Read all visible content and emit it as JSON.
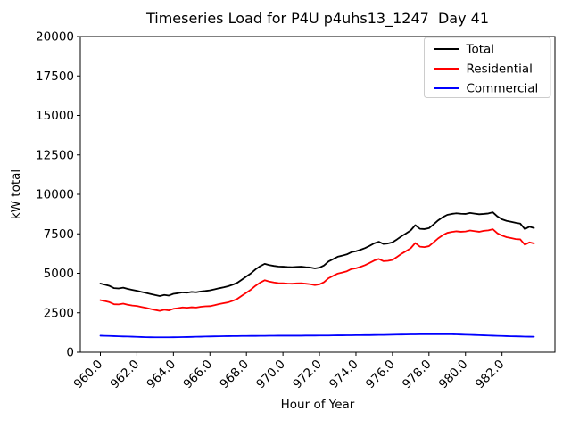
{
  "figure": {
    "title": "Timeseries Load for P4U p4uhs13_1247  Day 41",
    "xlabel": "Hour of Year",
    "ylabel": "kW total"
  },
  "colors": {
    "total": "#000000",
    "residential": "#ff0000",
    "commercial": "#0000ff",
    "axes": "#000000",
    "legend_border": "#cccccc",
    "background": "#ffffff"
  },
  "chart_data": {
    "type": "line",
    "title": "Timeseries Load for P4U p4uhs13_1247  Day 41",
    "xlabel": "Hour of Year",
    "ylabel": "kW total",
    "grid": false,
    "legend_position": "upper right",
    "xlim": [
      958.9,
      984.9
    ],
    "ylim": [
      0,
      20000
    ],
    "x_tick_values": [
      960.0,
      962.0,
      964.0,
      966.0,
      968.0,
      970.0,
      972.0,
      974.0,
      976.0,
      978.0,
      980.0,
      982.0
    ],
    "x_tick_labels": [
      "960.0",
      "962.0",
      "964.0",
      "966.0",
      "968.0",
      "970.0",
      "972.0",
      "974.0",
      "976.0",
      "978.0",
      "980.0",
      "982.0"
    ],
    "y_tick_values": [
      0,
      2500,
      5000,
      7500,
      10000,
      12500,
      15000,
      17500,
      20000
    ],
    "y_tick_labels": [
      "0",
      "2500",
      "5000",
      "7500",
      "10000",
      "12500",
      "15000",
      "17500",
      "20000"
    ],
    "x": [
      960.0,
      960.25,
      960.5,
      960.75,
      961.0,
      961.25,
      961.5,
      961.75,
      962.0,
      962.25,
      962.5,
      962.75,
      963.0,
      963.25,
      963.5,
      963.75,
      964.0,
      964.25,
      964.5,
      964.75,
      965.0,
      965.25,
      965.5,
      965.75,
      966.0,
      966.25,
      966.5,
      966.75,
      967.0,
      967.25,
      967.5,
      967.75,
      968.0,
      968.25,
      968.5,
      968.75,
      969.0,
      969.25,
      969.5,
      969.75,
      970.0,
      970.25,
      970.5,
      970.75,
      971.0,
      971.25,
      971.5,
      971.75,
      972.0,
      972.25,
      972.5,
      972.75,
      973.0,
      973.25,
      973.5,
      973.75,
      974.0,
      974.25,
      974.5,
      974.75,
      975.0,
      975.25,
      975.5,
      975.75,
      976.0,
      976.25,
      976.5,
      976.75,
      977.0,
      977.25,
      977.5,
      977.75,
      978.0,
      978.25,
      978.5,
      978.75,
      979.0,
      979.25,
      979.5,
      979.75,
      980.0,
      980.25,
      980.5,
      980.75,
      981.0,
      981.25,
      981.5,
      981.75,
      982.0,
      982.25,
      982.5,
      982.75,
      983.0,
      983.25,
      983.5,
      983.75
    ],
    "series": [
      {
        "name": "Total",
        "color": "#000000",
        "values": [
          4350,
          4280,
          4200,
          4060,
          4040,
          4090,
          4010,
          3950,
          3890,
          3820,
          3760,
          3690,
          3620,
          3560,
          3630,
          3590,
          3700,
          3740,
          3790,
          3770,
          3820,
          3800,
          3850,
          3880,
          3920,
          3980,
          4050,
          4110,
          4180,
          4280,
          4400,
          4600,
          4800,
          5000,
          5250,
          5450,
          5600,
          5520,
          5470,
          5430,
          5420,
          5400,
          5390,
          5410,
          5420,
          5390,
          5370,
          5310,
          5360,
          5500,
          5750,
          5900,
          6050,
          6120,
          6200,
          6340,
          6400,
          6490,
          6600,
          6740,
          6900,
          7000,
          6860,
          6890,
          6960,
          7150,
          7350,
          7530,
          7720,
          8050,
          7820,
          7800,
          7860,
          8100,
          8350,
          8550,
          8700,
          8760,
          8800,
          8770,
          8760,
          8820,
          8780,
          8740,
          8760,
          8790,
          8860,
          8600,
          8420,
          8320,
          8260,
          8200,
          8150,
          7800,
          7950,
          7870
        ]
      },
      {
        "name": "Residential",
        "color": "#ff0000",
        "values": [
          3300,
          3240,
          3170,
          3040,
          3030,
          3080,
          3010,
          2960,
          2930,
          2870,
          2810,
          2740,
          2680,
          2620,
          2690,
          2650,
          2750,
          2790,
          2840,
          2820,
          2850,
          2830,
          2880,
          2910,
          2920,
          2980,
          3050,
          3110,
          3160,
          3260,
          3380,
          3580,
          3770,
          3970,
          4210,
          4410,
          4560,
          4480,
          4420,
          4380,
          4370,
          4350,
          4340,
          4360,
          4370,
          4340,
          4310,
          4250,
          4300,
          4440,
          4690,
          4840,
          4980,
          5050,
          5130,
          5270,
          5320,
          5410,
          5520,
          5660,
          5810,
          5910,
          5770,
          5790,
          5850,
          6040,
          6240,
          6410,
          6590,
          6920,
          6690,
          6660,
          6720,
          6960,
          7210,
          7410,
          7560,
          7620,
          7660,
          7630,
          7650,
          7710,
          7670,
          7630,
          7690,
          7720,
          7790,
          7530,
          7390,
          7290,
          7230,
          7170,
          7150,
          6810,
          6960,
          6890
        ]
      },
      {
        "name": "Commercial",
        "color": "#0000ff",
        "values": [
          1050,
          1040,
          1030,
          1020,
          1010,
          1000,
          995,
          985,
          975,
          965,
          955,
          950,
          945,
          945,
          945,
          945,
          950,
          955,
          960,
          965,
          970,
          980,
          985,
          995,
          1000,
          1005,
          1010,
          1015,
          1020,
          1025,
          1025,
          1030,
          1030,
          1035,
          1035,
          1040,
          1040,
          1045,
          1045,
          1050,
          1050,
          1050,
          1050,
          1050,
          1050,
          1055,
          1055,
          1055,
          1060,
          1060,
          1060,
          1065,
          1070,
          1070,
          1075,
          1075,
          1080,
          1080,
          1085,
          1085,
          1090,
          1095,
          1095,
          1100,
          1110,
          1115,
          1120,
          1125,
          1130,
          1130,
          1135,
          1135,
          1140,
          1140,
          1140,
          1140,
          1140,
          1135,
          1130,
          1120,
          1110,
          1100,
          1090,
          1080,
          1070,
          1060,
          1050,
          1040,
          1030,
          1020,
          1010,
          1005,
          1000,
          990,
          985,
          980
        ]
      }
    ],
    "legend_items": [
      {
        "label": "Total",
        "color": "#000000"
      },
      {
        "label": "Residential",
        "color": "#ff0000"
      },
      {
        "label": "Commercial",
        "color": "#0000ff"
      }
    ]
  }
}
